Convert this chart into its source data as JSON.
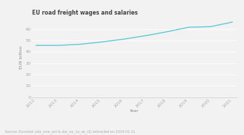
{
  "title": "EU road freight wages and salaries",
  "years": [
    2012,
    2013,
    2014,
    2015,
    2016,
    2017,
    2018,
    2019,
    2020,
    2021
  ],
  "values": [
    45.5,
    45.5,
    46.5,
    48.5,
    51.0,
    54.0,
    57.5,
    61.5,
    62.0,
    66.0
  ],
  "line_color": "#5bc8d4",
  "line_width": 1.0,
  "xlabel": "Year",
  "ylabel": "EUR billion",
  "ylim": [
    0,
    70
  ],
  "yticks": [
    0,
    10,
    20,
    30,
    40,
    50,
    60
  ],
  "background_color": "#f2f2f2",
  "source_text": "Source: Eurostat (sbs_ovw_act & sbs_na_1a_se_r2) extracted on 2024-01-11",
  "title_fontsize": 5.5,
  "axis_label_fontsize": 4.5,
  "tick_fontsize": 4.5,
  "source_fontsize": 3.5
}
